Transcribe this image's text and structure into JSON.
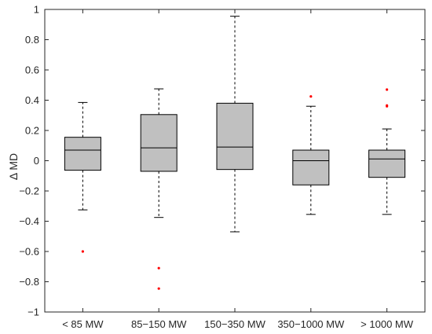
{
  "chart_data": {
    "type": "box",
    "ylabel": "Δ MD",
    "xlabel": "",
    "ylim": [
      -1,
      1
    ],
    "yticks": [
      -1,
      -0.8,
      -0.6,
      -0.4,
      -0.2,
      0,
      0.2,
      0.4,
      0.6,
      0.8,
      1
    ],
    "ytick_labels": [
      "−1",
      "−0.8",
      "−0.6",
      "−0.4",
      "−0.2",
      "0",
      "0.2",
      "0.4",
      "0.6",
      "0.8",
      "1"
    ],
    "categories": [
      "< 85 MW",
      "85−150 MW",
      "150−350 MW",
      "350−1000 MW",
      "> 1000 MW"
    ],
    "boxes": [
      {
        "whisker_low": -0.325,
        "q1": -0.063,
        "median": 0.07,
        "q3": 0.155,
        "whisker_high": 0.385,
        "outliers": [
          -0.6
        ]
      },
      {
        "whisker_low": -0.375,
        "q1": -0.07,
        "median": 0.085,
        "q3": 0.305,
        "whisker_high": 0.475,
        "outliers": [
          -0.71,
          -0.845
        ]
      },
      {
        "whisker_low": -0.47,
        "q1": -0.058,
        "median": 0.09,
        "q3": 0.38,
        "whisker_high": 0.955,
        "outliers": []
      },
      {
        "whisker_low": -0.355,
        "q1": -0.16,
        "median": 0.0,
        "q3": 0.07,
        "whisker_high": 0.36,
        "outliers": [
          0.425
        ]
      },
      {
        "whisker_low": -0.355,
        "q1": -0.11,
        "median": 0.012,
        "q3": 0.07,
        "whisker_high": 0.21,
        "outliers": [
          0.47,
          0.36,
          0.365
        ]
      }
    ],
    "grid": false,
    "colors": {
      "box_fill": "#c0c0c0",
      "box_edge": "#000000",
      "outlier": "#ff0000",
      "axis": "#262626"
    }
  }
}
